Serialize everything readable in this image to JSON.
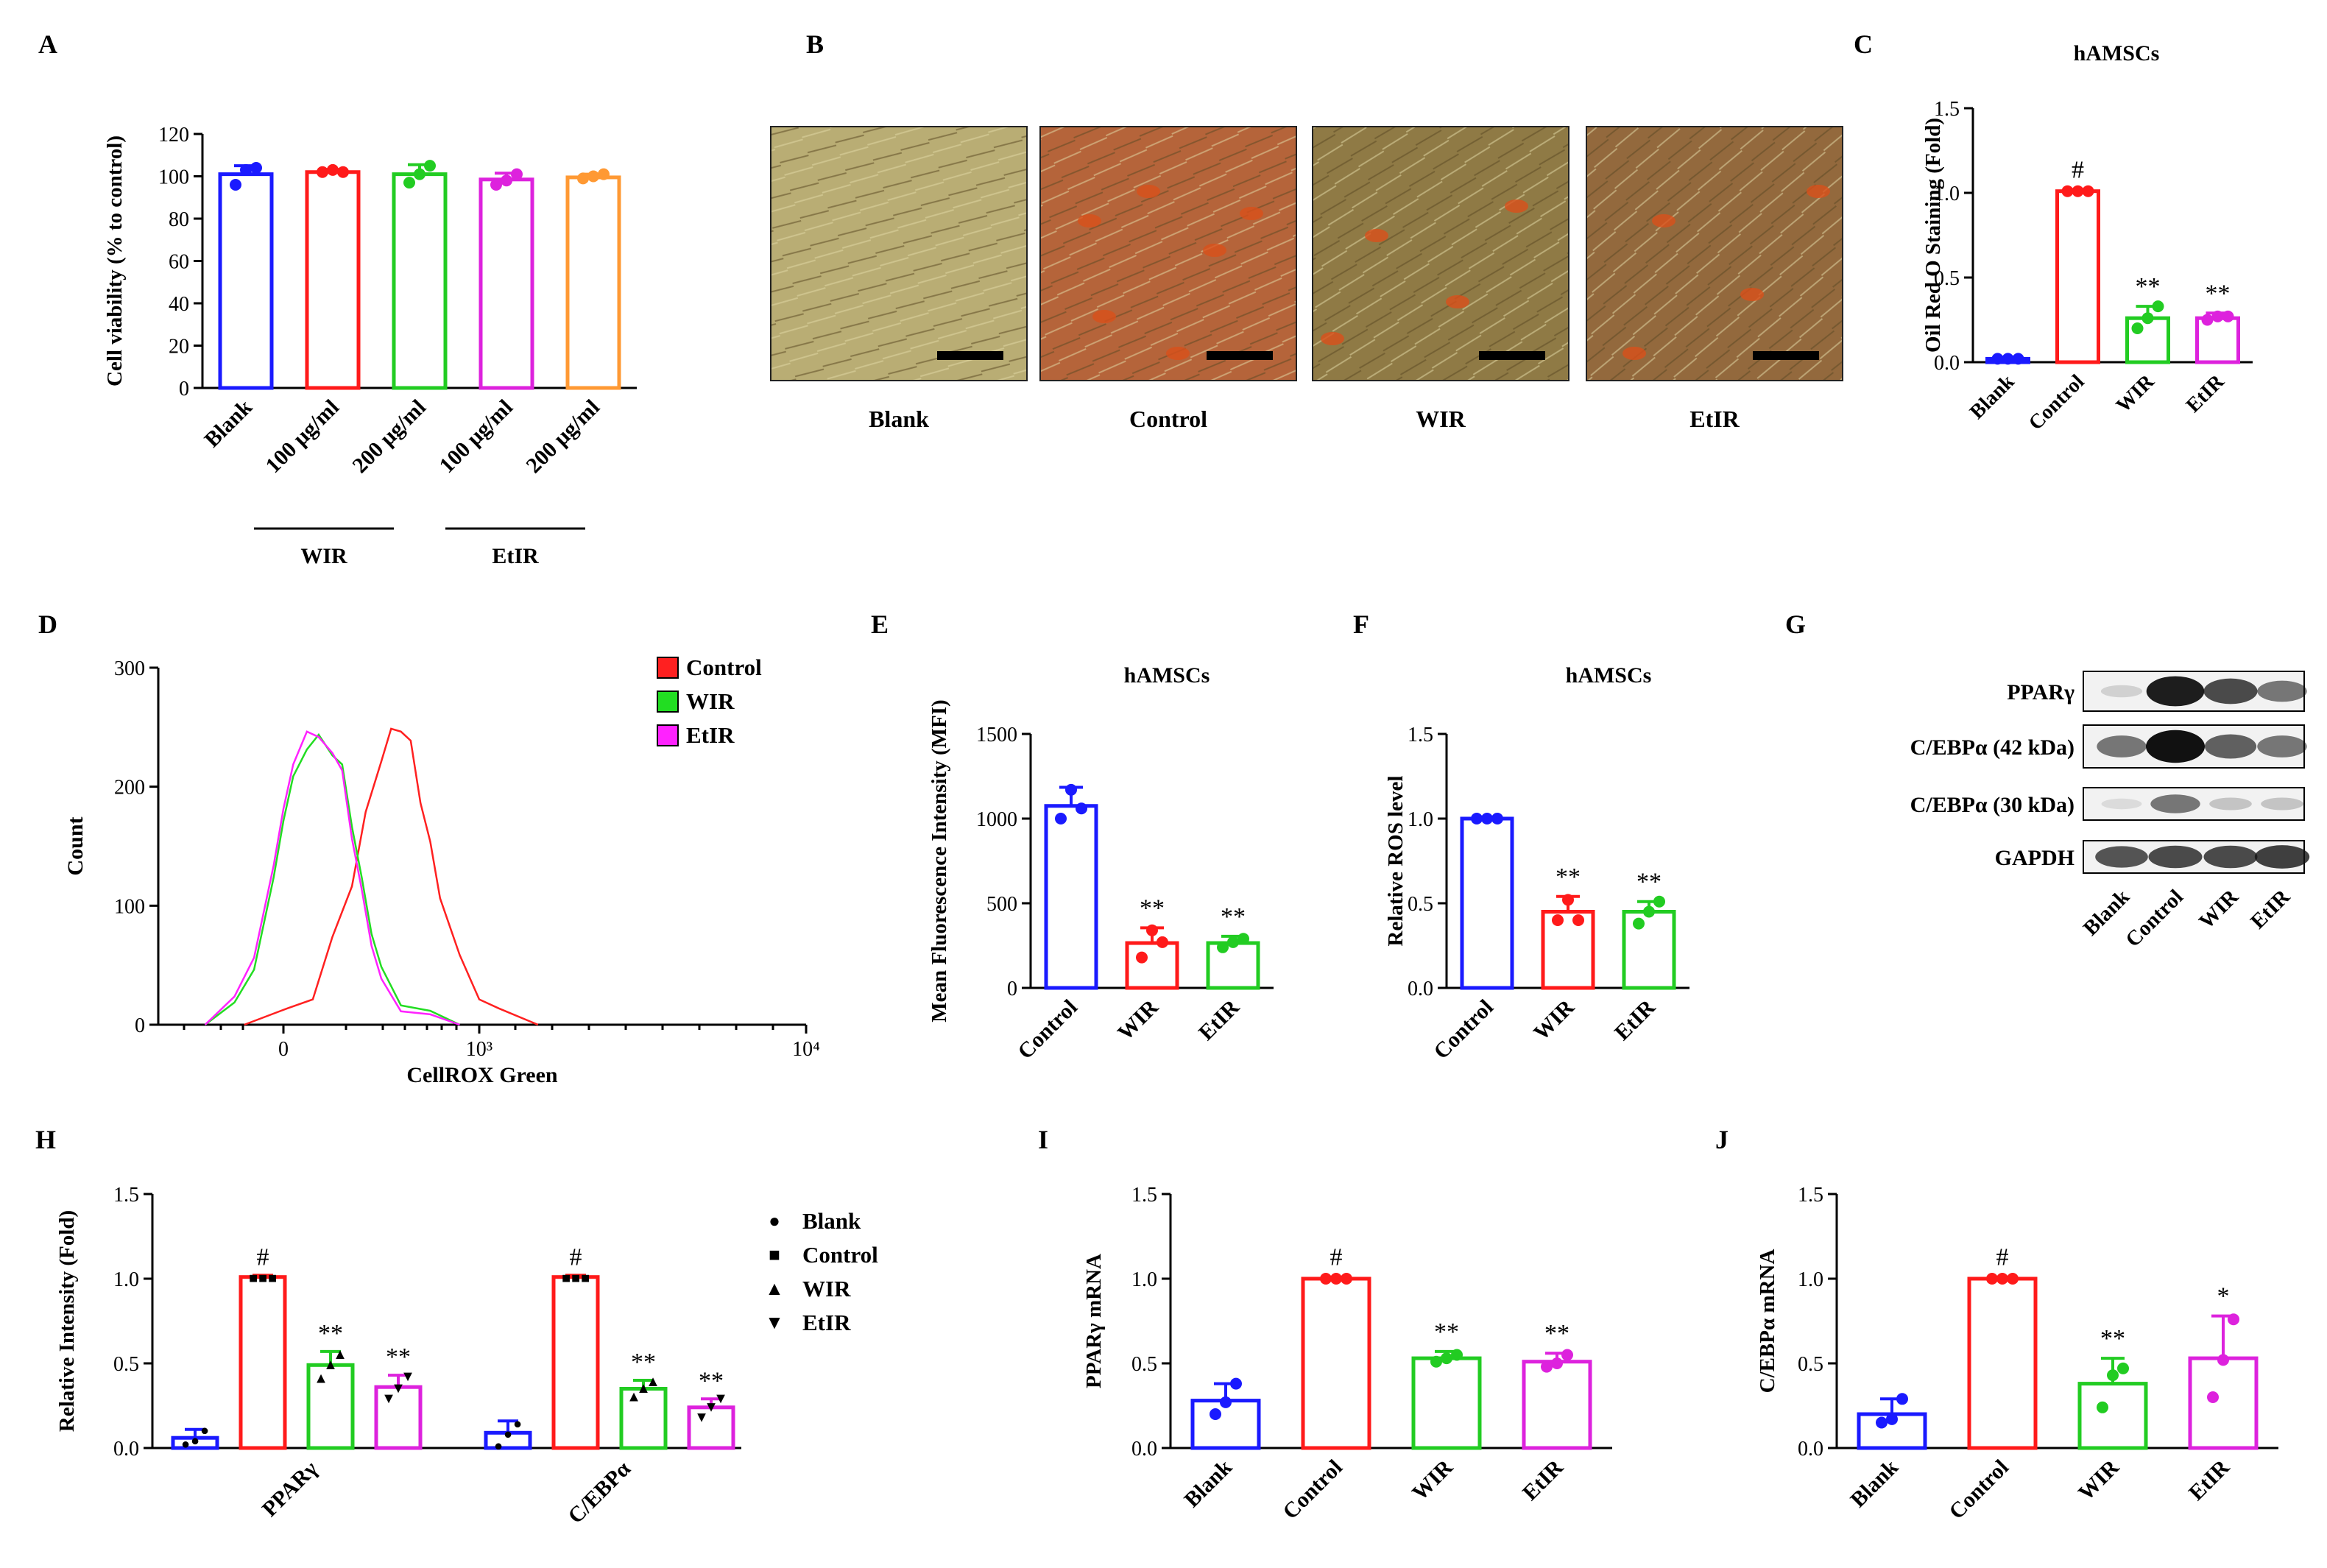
{
  "panel_labels": [
    "A",
    "B",
    "C",
    "D",
    "E",
    "F",
    "G",
    "H",
    "I",
    "J"
  ],
  "chart_data": [
    {
      "id": "A",
      "type": "bar",
      "ylabel": "Cell viability (% to control)",
      "ylim": [
        0,
        120
      ],
      "yticks": [
        0,
        20,
        40,
        60,
        80,
        100,
        120
      ],
      "categories": [
        "Blank",
        "100 μg/ml",
        "200 μg/ml",
        "100 μg/ml",
        "200 μg/ml"
      ],
      "groups": [
        {
          "label": "WIR"
        },
        {
          "label": "EtIR"
        }
      ],
      "values": [
        101,
        102,
        101,
        98.5,
        99.5
      ],
      "errors": [
        4,
        1.2,
        4.5,
        3,
        1.5
      ],
      "points": [
        [
          96,
          103,
          104
        ],
        [
          102,
          103,
          102
        ],
        [
          97,
          101,
          105
        ],
        [
          96,
          98,
          101
        ],
        [
          99,
          100,
          101
        ]
      ],
      "colors": [
        "#1a1aff",
        "#ff1a1a",
        "#22cc22",
        "#dd22dd",
        "#ff9933"
      ],
      "grid": false
    },
    {
      "id": "C",
      "type": "bar",
      "title": "hAMSCs",
      "ylabel": "Oil Red O Staining (Fold)",
      "ylim": [
        0,
        1.5
      ],
      "yticks": [
        0.0,
        0.5,
        1.0,
        1.5
      ],
      "categories": [
        "Blank",
        "Control",
        "WIR",
        "EtIR"
      ],
      "values": [
        0.02,
        1.01,
        0.26,
        0.26
      ],
      "errors": [
        0.01,
        0.01,
        0.07,
        0.03
      ],
      "points": [
        [
          0.02,
          0.02,
          0.02
        ],
        [
          1.01,
          1.01,
          1.01
        ],
        [
          0.2,
          0.26,
          0.33
        ],
        [
          0.25,
          0.27,
          0.27
        ]
      ],
      "annotations": [
        "",
        "#",
        "**",
        "**"
      ],
      "colors": [
        "#1a1aff",
        "#ff1a1a",
        "#22cc22",
        "#dd22dd"
      ]
    },
    {
      "id": "D",
      "type": "line",
      "xlabel": "CellROX Green",
      "ylabel": "Count",
      "ylim": [
        0,
        300
      ],
      "yticks": [
        0,
        100,
        200,
        300
      ],
      "xtick_labels": [
        "0",
        "10³",
        "10⁴"
      ],
      "series": [
        {
          "name": "Control",
          "color": "#ff2020",
          "x": [
            -0.2,
            0.02,
            0.15,
            0.25,
            0.35,
            0.42,
            0.5,
            0.55,
            0.6,
            0.65,
            0.7,
            0.75,
            0.8,
            0.9,
            1.0,
            1.1,
            1.3
          ],
          "y": [
            0,
            10,
            25,
            70,
            120,
            175,
            225,
            245,
            250,
            235,
            190,
            150,
            110,
            55,
            25,
            10,
            0
          ]
        },
        {
          "name": "WIR",
          "color": "#22dd22",
          "x": [
            -0.4,
            -0.25,
            -0.15,
            -0.05,
            0,
            0.05,
            0.12,
            0.18,
            0.25,
            0.3,
            0.35,
            0.4,
            0.45,
            0.5,
            0.6,
            0.75,
            0.9
          ],
          "y": [
            0,
            15,
            50,
            120,
            175,
            205,
            235,
            240,
            230,
            215,
            170,
            120,
            80,
            45,
            20,
            8,
            0
          ]
        },
        {
          "name": "EtIR",
          "color": "#ff22ff",
          "x": [
            -0.4,
            -0.25,
            -0.15,
            -0.05,
            0,
            0.05,
            0.12,
            0.18,
            0.25,
            0.3,
            0.35,
            0.4,
            0.45,
            0.5,
            0.6,
            0.75,
            0.9
          ],
          "y": [
            0,
            20,
            60,
            130,
            185,
            215,
            250,
            238,
            232,
            210,
            160,
            110,
            70,
            35,
            15,
            5,
            0
          ]
        }
      ]
    },
    {
      "id": "E",
      "type": "bar",
      "title": "hAMSCs",
      "ylabel": "Mean Fluorescence Intensity (MFI)",
      "ylim": [
        0,
        1500
      ],
      "yticks": [
        0,
        500,
        1000,
        1500
      ],
      "categories": [
        "Control",
        "WIR",
        "EtIR"
      ],
      "values": [
        1075,
        265,
        265
      ],
      "errors": [
        110,
        90,
        40
      ],
      "points": [
        [
          1000,
          1170,
          1060
        ],
        [
          180,
          340,
          270
        ],
        [
          240,
          270,
          290
        ]
      ],
      "annotations": [
        "",
        "**",
        "**"
      ],
      "colors": [
        "#1a1aff",
        "#ff1a1a",
        "#22cc22"
      ]
    },
    {
      "id": "F",
      "type": "bar",
      "title": "hAMSCs",
      "ylabel": "Relative ROS level",
      "ylim": [
        0,
        1.5
      ],
      "yticks": [
        0.0,
        0.5,
        1.0,
        1.5
      ],
      "categories": [
        "Control",
        "WIR",
        "EtIR"
      ],
      "values": [
        1.0,
        0.45,
        0.45
      ],
      "errors": [
        0.01,
        0.09,
        0.06
      ],
      "points": [
        [
          1.0,
          1.0,
          1.0
        ],
        [
          0.4,
          0.52,
          0.4
        ],
        [
          0.38,
          0.45,
          0.51
        ]
      ],
      "annotations": [
        "",
        "**",
        "**"
      ],
      "colors": [
        "#1a1aff",
        "#ff1a1a",
        "#22cc22"
      ]
    },
    {
      "id": "H",
      "type": "bar",
      "ylabel": "Relative Intensity (Fold)",
      "ylim": [
        0,
        1.5
      ],
      "yticks": [
        0.0,
        0.5,
        1.0,
        1.5
      ],
      "categories": [
        "PPARγ",
        "C/EBPα"
      ],
      "series": [
        {
          "name": "Blank",
          "color": "#1a1aff",
          "marker": "●",
          "values": [
            0.06,
            0.09
          ],
          "errors": [
            0.05,
            0.07
          ],
          "points": [
            [
              0.03,
              0.05,
              0.11
            ],
            [
              0.02,
              0.09,
              0.15
            ]
          ],
          "annotations": [
            "",
            ""
          ]
        },
        {
          "name": "Control",
          "color": "#ff1a1a",
          "marker": "■",
          "values": [
            1.01,
            1.01
          ],
          "errors": [
            0.01,
            0.01
          ],
          "points": [
            [
              1.01,
              1.01,
              1.01
            ],
            [
              1.01,
              1.01,
              1.01
            ]
          ],
          "annotations": [
            "#",
            "#"
          ]
        },
        {
          "name": "WIR",
          "color": "#22cc22",
          "marker": "▲",
          "values": [
            0.49,
            0.35
          ],
          "errors": [
            0.08,
            0.05
          ],
          "points": [
            [
              0.42,
              0.5,
              0.56
            ],
            [
              0.31,
              0.36,
              0.4
            ]
          ],
          "annotations": [
            "**",
            "**"
          ]
        },
        {
          "name": "EtIR",
          "color": "#dd22dd",
          "marker": "▼",
          "values": [
            0.36,
            0.24
          ],
          "errors": [
            0.07,
            0.05
          ],
          "points": [
            [
              0.3,
              0.36,
              0.43
            ],
            [
              0.19,
              0.25,
              0.3
            ]
          ],
          "annotations": [
            "**",
            "**"
          ]
        }
      ]
    },
    {
      "id": "I",
      "type": "bar",
      "ylabel": "PPARγ mRNA",
      "ylim": [
        0,
        1.5
      ],
      "yticks": [
        0.0,
        0.5,
        1.0,
        1.5
      ],
      "categories": [
        "Blank",
        "Control",
        "WIR",
        "EtIR"
      ],
      "values": [
        0.28,
        1.0,
        0.53,
        0.51
      ],
      "errors": [
        0.1,
        0.01,
        0.04,
        0.05
      ],
      "points": [
        [
          0.2,
          0.27,
          0.38
        ],
        [
          1.0,
          1.0,
          1.0
        ],
        [
          0.51,
          0.53,
          0.55
        ],
        [
          0.48,
          0.5,
          0.55
        ]
      ],
      "annotations": [
        "",
        "#",
        "**",
        "**"
      ],
      "colors": [
        "#1a1aff",
        "#ff1a1a",
        "#22cc22",
        "#dd22dd"
      ]
    },
    {
      "id": "J",
      "type": "bar",
      "ylabel": "C/EBPα mRNA",
      "ylim": [
        0,
        1.5
      ],
      "yticks": [
        0.0,
        0.5,
        1.0,
        1.5
      ],
      "categories": [
        "Blank",
        "Control",
        "WIR",
        "EtIR"
      ],
      "values": [
        0.2,
        1.0,
        0.38,
        0.53
      ],
      "errors": [
        0.09,
        0.01,
        0.15,
        0.25
      ],
      "points": [
        [
          0.15,
          0.17,
          0.29
        ],
        [
          1.0,
          1.0,
          1.0
        ],
        [
          0.24,
          0.43,
          0.47
        ],
        [
          0.3,
          0.52,
          0.76
        ]
      ],
      "annotations": [
        "",
        "#",
        "**",
        "*"
      ],
      "colors": [
        "#1a1aff",
        "#ff1a1a",
        "#22cc22",
        "#dd22dd"
      ]
    }
  ],
  "micrographs": {
    "labels": [
      "Blank",
      "Control",
      "WIR",
      "EtIR"
    ],
    "fill_colors": [
      "#b9ad74",
      "#b5643a",
      "#8f7a45",
      "#93693d"
    ]
  },
  "western": {
    "rows": [
      "PPARγ",
      "C/EBPα (42 kDa)",
      "C/EBPα (30 kDa)",
      "GAPDH"
    ],
    "lanes": [
      "Blank",
      "Control",
      "WIR",
      "EtIR"
    ]
  }
}
